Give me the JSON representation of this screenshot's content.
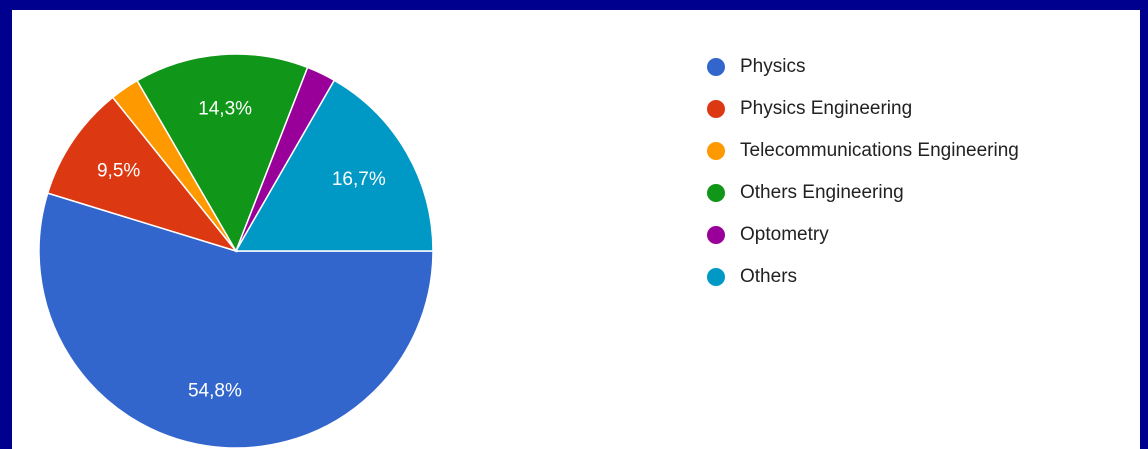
{
  "chart_data": {
    "type": "pie",
    "categories": [
      "Physics",
      "Physics Engineering",
      "Telecommunications Engineering",
      "Others Engineering",
      "Optometry",
      "Others"
    ],
    "values": [
      54.8,
      9.5,
      2.4,
      14.3,
      2.4,
      16.7
    ],
    "value_labels": [
      "54,8%",
      "9,5%",
      null,
      "14,3%",
      null,
      "16,7%"
    ],
    "colors": [
      "#3366cc",
      "#dc3912",
      "#ff9900",
      "#109618",
      "#990099",
      "#0099c6"
    ],
    "legend": "right"
  }
}
